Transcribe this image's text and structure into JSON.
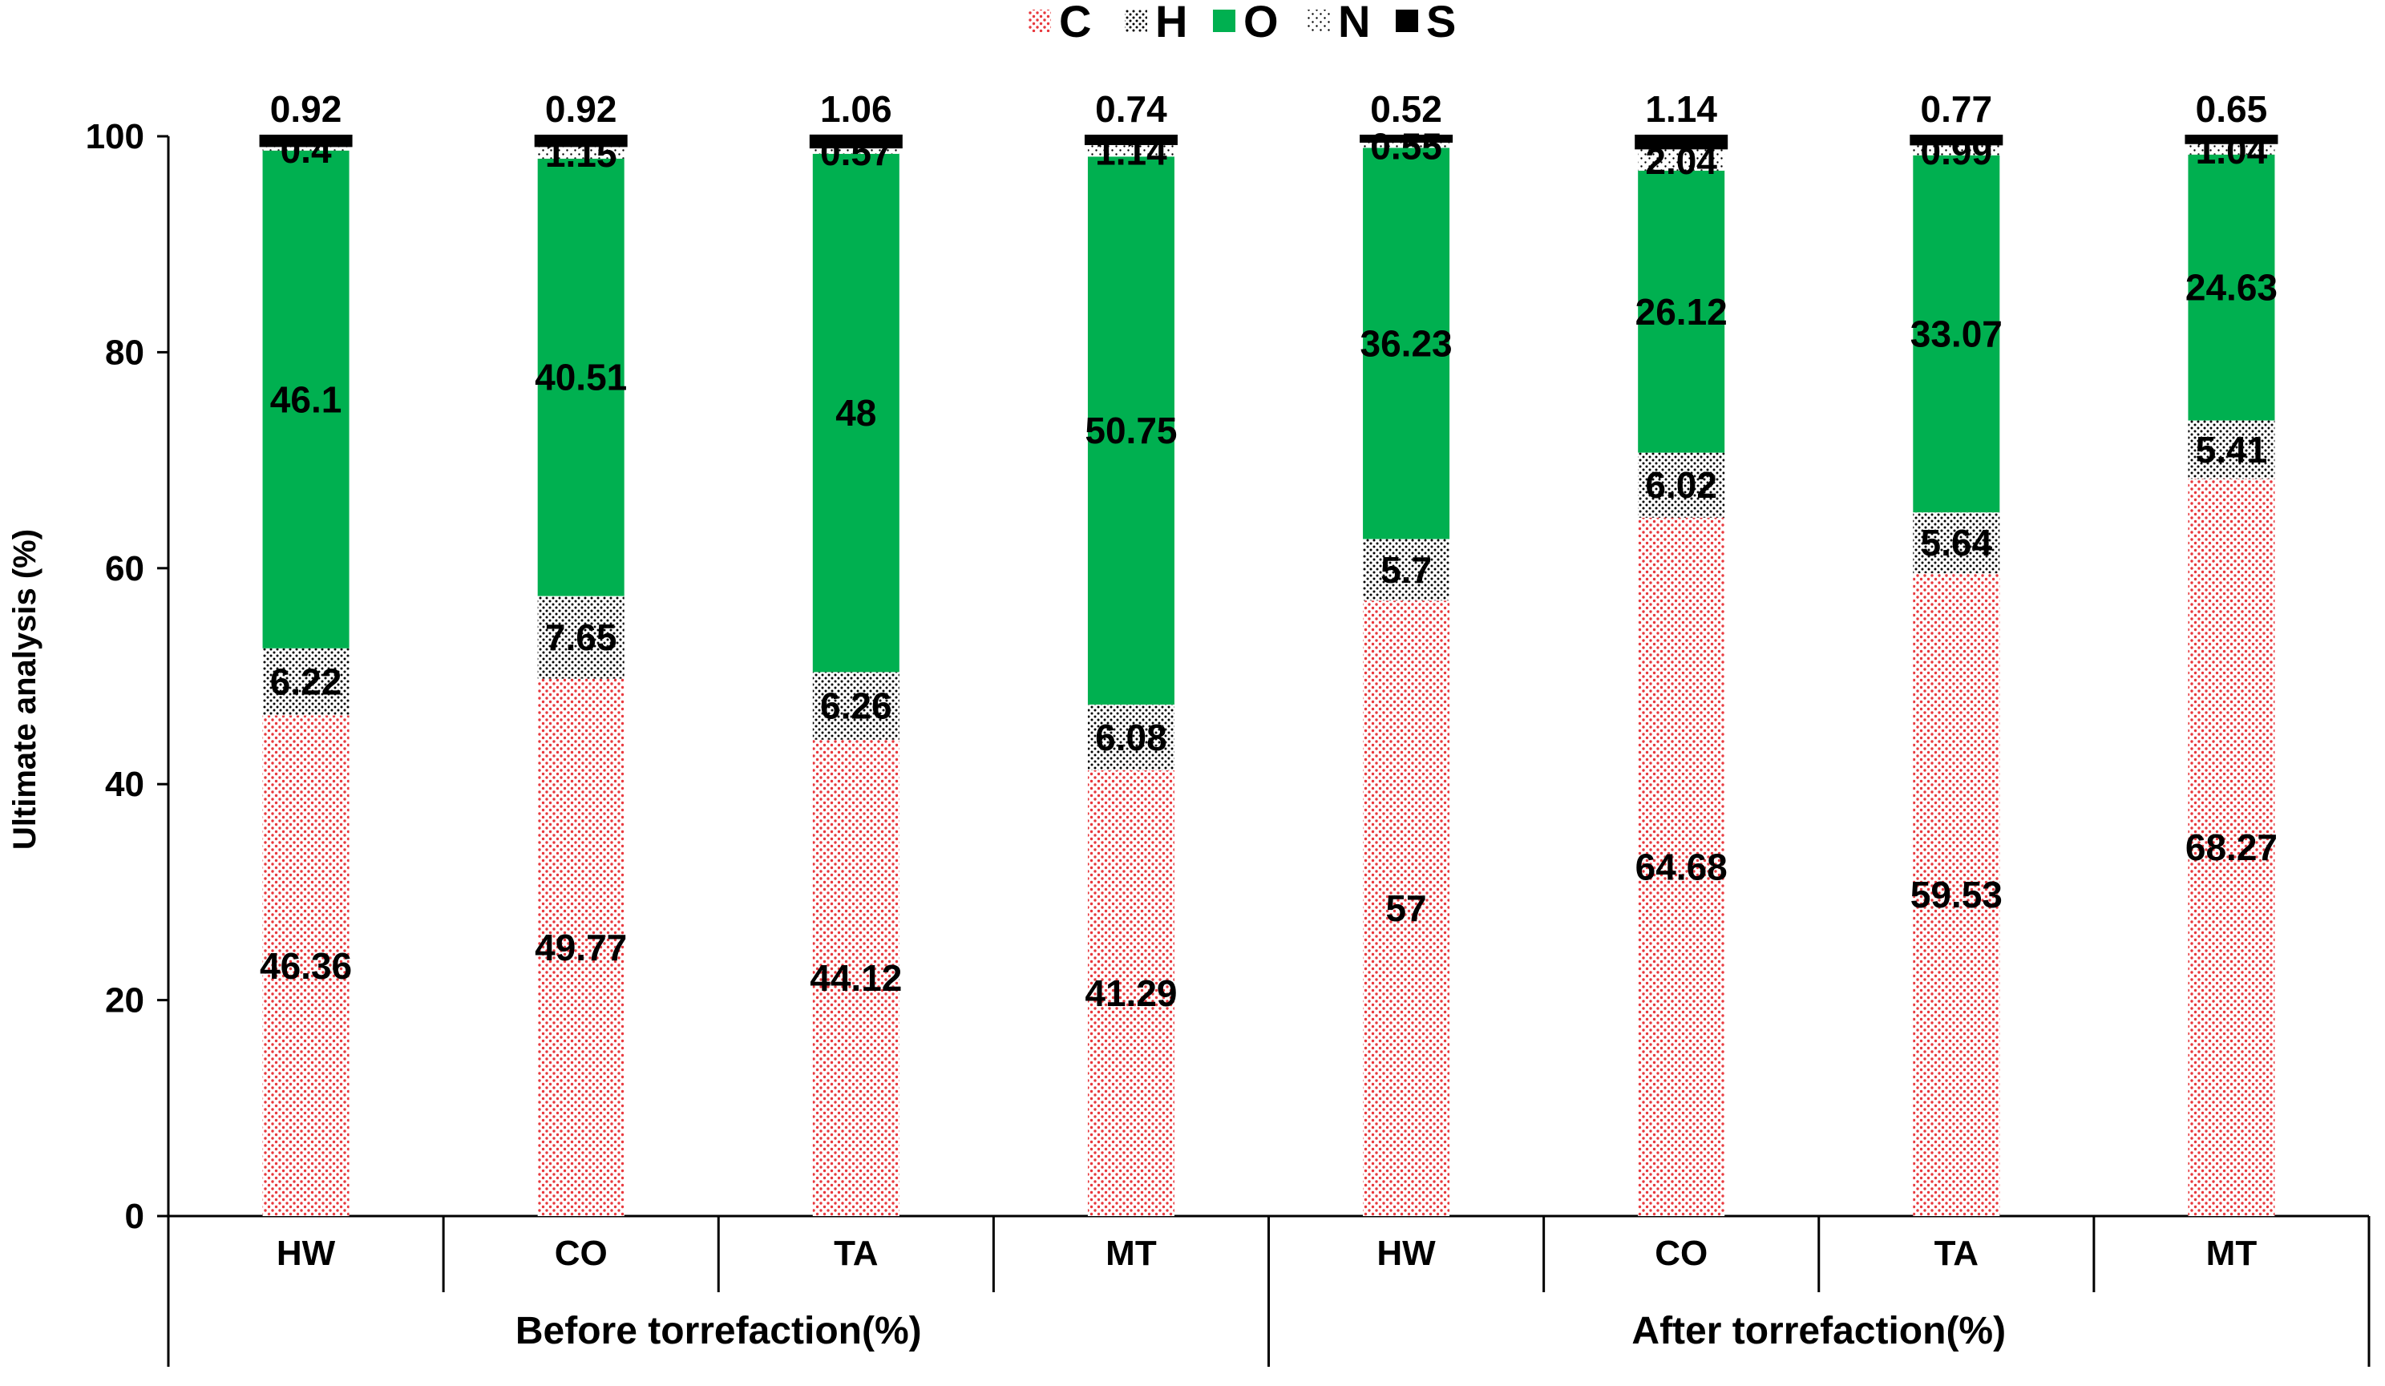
{
  "chart_data": {
    "type": "bar",
    "stacked": true,
    "title": "",
    "xlabel": "",
    "ylabel": "Ultimate analysis (%)",
    "ylim": [
      0,
      100
    ],
    "yticks": [
      "0",
      "20",
      "40",
      "60",
      "80",
      "100"
    ],
    "legend_position": "top-center",
    "groups": [
      {
        "label": "Before torrefaction(%)",
        "categories": [
          "HW",
          "CO",
          "TA",
          "MT"
        ]
      },
      {
        "label": "After torrefaction(%)",
        "categories": [
          "HW",
          "CO",
          "TA",
          "MT"
        ]
      }
    ],
    "series": [
      {
        "name": "C",
        "pattern": "dots-red",
        "color": "#e8383d",
        "values": [
          46.36,
          49.77,
          44.12,
          41.29,
          57,
          64.68,
          59.53,
          68.27
        ],
        "labels": [
          "46.36",
          "49.77",
          "44.12",
          "41.29",
          "57",
          "64.68",
          "59.53",
          "68.27"
        ]
      },
      {
        "name": "H",
        "pattern": "dots-black",
        "color": "#000000",
        "values": [
          6.22,
          7.65,
          6.26,
          6.08,
          5.7,
          6.02,
          5.64,
          5.41
        ],
        "labels": [
          "6.22",
          "7.65",
          "6.26",
          "6.08",
          "5.7",
          "6.02",
          "5.64",
          "5.41"
        ]
      },
      {
        "name": "O",
        "pattern": "solid-green",
        "color": "#00b050",
        "values": [
          46.1,
          40.51,
          48,
          50.75,
          36.23,
          26.12,
          33.07,
          24.63
        ],
        "labels": [
          "46.1",
          "40.51",
          "48",
          "50.75",
          "36.23",
          "26.12",
          "33.07",
          "24.63"
        ]
      },
      {
        "name": "N",
        "pattern": "sparse-dots",
        "color": "#000000",
        "values": [
          0.4,
          1.15,
          0.57,
          1.14,
          0.55,
          2.04,
          0.99,
          1.04
        ],
        "labels": [
          "0.4",
          "1.15",
          "0.57",
          "1.14",
          "0.55",
          "2.04",
          "0.99",
          "1.04"
        ]
      },
      {
        "name": "S",
        "pattern": "solid-black",
        "color": "#000000",
        "values": [
          0.92,
          0.92,
          1.06,
          0.74,
          0.52,
          1.14,
          0.77,
          0.65
        ],
        "labels": [
          "0.92",
          "0.92",
          "1.06",
          "0.74",
          "0.52",
          "1.14",
          "0.77",
          "0.65"
        ]
      }
    ]
  }
}
